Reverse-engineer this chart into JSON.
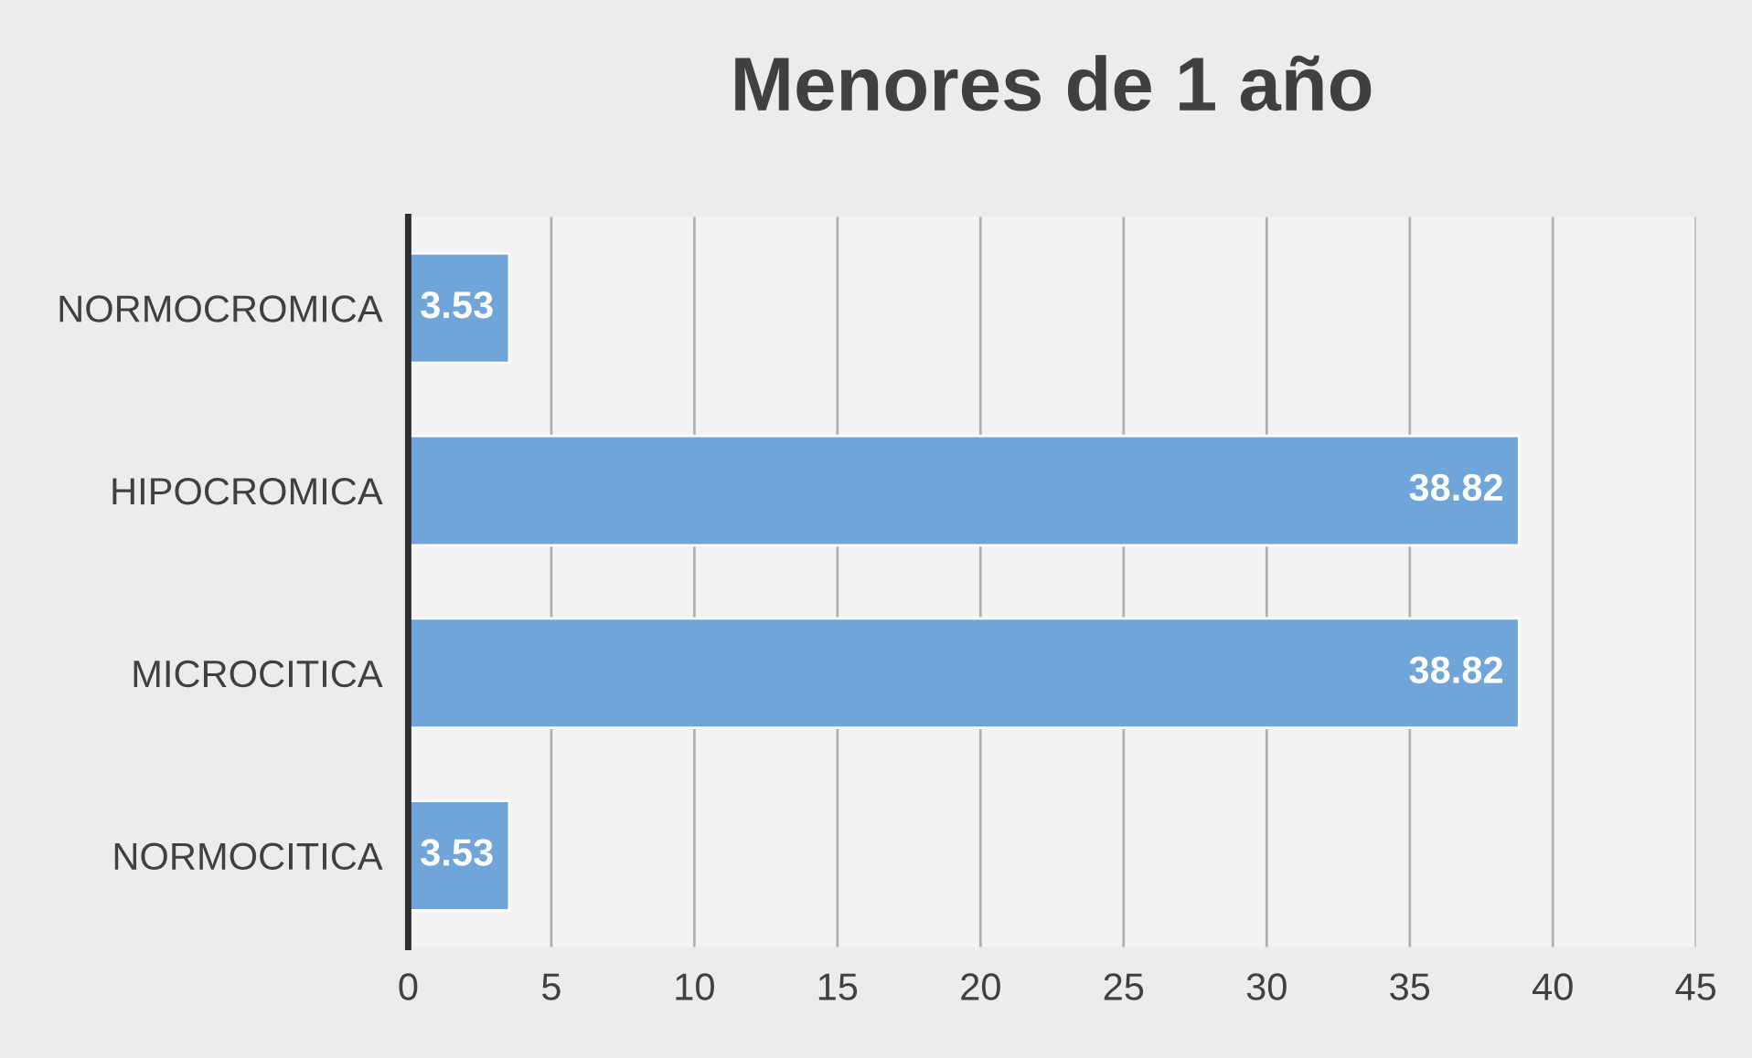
{
  "chart_data": {
    "type": "bar",
    "orientation": "horizontal",
    "title": "Menores de 1 año",
    "categories": [
      "NORMOCROMICA",
      "HIPOCROMICA",
      "MICROCITICA",
      "NORMOCITICA"
    ],
    "values": [
      3.53,
      38.82,
      38.82,
      3.53
    ],
    "color": "#6fa5d9",
    "xlim": [
      0,
      45
    ],
    "xticks": [
      0,
      5,
      10,
      15,
      20,
      25,
      30,
      35,
      40,
      45
    ],
    "grid": "x",
    "data_labels": true
  }
}
